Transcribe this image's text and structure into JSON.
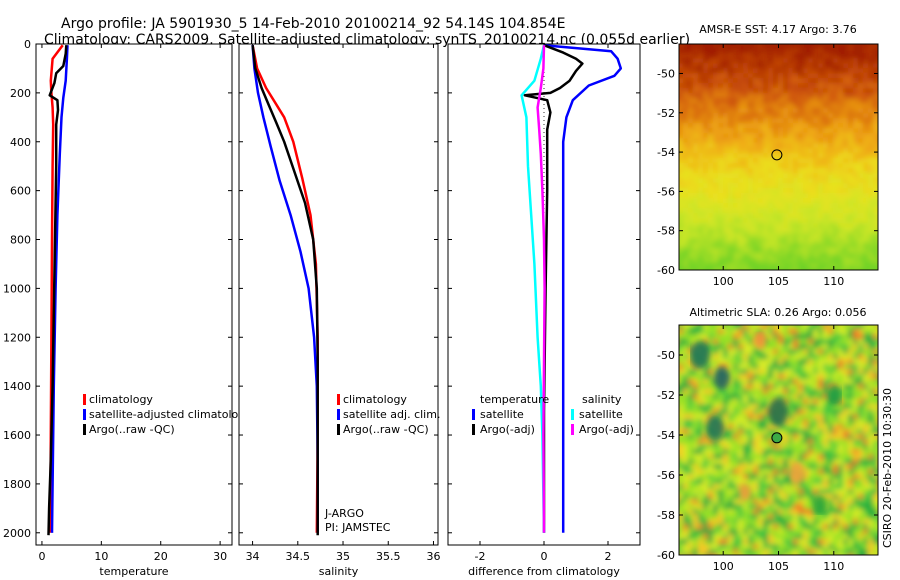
{
  "header": {
    "line1": "Argo profile: JA 5901930_5 14-Feb-2010 20100214_92 54.14S 104.854E",
    "line2": "Climatology: CARS2009. Satellite-adjusted climatology: synTS_20100214.nc (0.055d earlier)"
  },
  "side_label": "CSIRO 20-Feb-2010 10:30:30",
  "colors": {
    "climatology": "#ff0000",
    "satellite": "#0000ff",
    "argo": "#000000",
    "argo_adj": "#ff00ff",
    "satellite_adj": "#00ffff"
  },
  "chart_data": [
    {
      "id": "temperature",
      "type": "line",
      "xlabel": "temperature",
      "xlim": [
        -1,
        32
      ],
      "ylim": [
        2050,
        0
      ],
      "xticks": [
        0,
        10,
        20,
        30
      ],
      "xtick_labels": [
        "0",
        "10",
        "20",
        "30"
      ],
      "yticks": [
        0,
        200,
        400,
        600,
        800,
        1000,
        1200,
        1400,
        1600,
        1800,
        2000
      ],
      "ytick_labels": [
        "0",
        "200",
        "400",
        "600",
        "800",
        "1000",
        "1200",
        "1400",
        "1600",
        "1800",
        "2000"
      ],
      "legend": [
        "climatology",
        "satellite-adjusted climatology",
        "Argo(..raw -QC)"
      ],
      "series": [
        {
          "name": "climatology",
          "color": "#ff0000",
          "points": [
            [
              3.5,
              5
            ],
            [
              1.8,
              60
            ],
            [
              1.5,
              150
            ],
            [
              1.6,
              200
            ],
            [
              1.8,
              260
            ],
            [
              1.9,
              330
            ],
            [
              1.8,
              500
            ],
            [
              1.7,
              800
            ],
            [
              1.6,
              1200
            ],
            [
              1.5,
              1600
            ],
            [
              1.4,
              2000
            ]
          ]
        },
        {
          "name": "satellite-adjusted climatology",
          "color": "#0000ff",
          "points": [
            [
              4.3,
              5
            ],
            [
              4.2,
              60
            ],
            [
              4.0,
              150
            ],
            [
              3.6,
              220
            ],
            [
              3.3,
              300
            ],
            [
              3.0,
              450
            ],
            [
              2.6,
              700
            ],
            [
              2.3,
              1000
            ],
            [
              2.0,
              1400
            ],
            [
              1.8,
              1800
            ],
            [
              1.7,
              2000
            ]
          ]
        },
        {
          "name": "Argo(..raw -QC)",
          "color": "#000000",
          "points": [
            [
              4.1,
              5
            ],
            [
              4.0,
              40
            ],
            [
              3.6,
              90
            ],
            [
              2.4,
              120
            ],
            [
              2.1,
              160
            ],
            [
              1.3,
              210
            ],
            [
              2.6,
              230
            ],
            [
              2.7,
              270
            ],
            [
              2.4,
              330
            ],
            [
              2.4,
              500
            ],
            [
              2.2,
              800
            ],
            [
              2.0,
              1100
            ],
            [
              1.8,
              1400
            ],
            [
              1.5,
              1700
            ],
            [
              1.2,
              1900
            ],
            [
              1.1,
              2010
            ]
          ]
        }
      ]
    },
    {
      "id": "salinity",
      "type": "line",
      "xlabel": "salinity",
      "xlim": [
        33.85,
        36.05
      ],
      "ylim": [
        2050,
        0
      ],
      "xticks": [
        34,
        34.5,
        35,
        35.5,
        36
      ],
      "xtick_labels": [
        "34",
        "34.5",
        "35",
        "35.5",
        "36"
      ],
      "legend": [
        "climatology",
        "satellite adj. clim.",
        "Argo(..raw -QC)"
      ],
      "notes": [
        "J-ARGO",
        "PI: JAMSTEC"
      ],
      "series": [
        {
          "name": "climatology",
          "color": "#ff0000",
          "points": [
            [
              34.0,
              5
            ],
            [
              34.05,
              100
            ],
            [
              34.15,
              180
            ],
            [
              34.25,
              240
            ],
            [
              34.35,
              300
            ],
            [
              34.45,
              400
            ],
            [
              34.55,
              550
            ],
            [
              34.64,
              700
            ],
            [
              34.7,
              900
            ],
            [
              34.72,
              1200
            ],
            [
              34.72,
              1600
            ],
            [
              34.71,
              2000
            ]
          ]
        },
        {
          "name": "satellite adj. clim.",
          "color": "#0000ff",
          "points": [
            [
              34.0,
              5
            ],
            [
              34.02,
              100
            ],
            [
              34.06,
              200
            ],
            [
              34.12,
              300
            ],
            [
              34.2,
              420
            ],
            [
              34.3,
              560
            ],
            [
              34.42,
              700
            ],
            [
              34.53,
              850
            ],
            [
              34.62,
              1000
            ],
            [
              34.68,
              1200
            ],
            [
              34.71,
              1400
            ],
            [
              34.72,
              1700
            ],
            [
              34.72,
              2000
            ]
          ]
        },
        {
          "name": "Argo(..raw -QC)",
          "color": "#000000",
          "points": [
            [
              34.0,
              5
            ],
            [
              34.03,
              100
            ],
            [
              34.1,
              180
            ],
            [
              34.18,
              250
            ],
            [
              34.26,
              320
            ],
            [
              34.35,
              400
            ],
            [
              34.46,
              520
            ],
            [
              34.58,
              650
            ],
            [
              34.67,
              800
            ],
            [
              34.71,
              1000
            ],
            [
              34.72,
              1300
            ],
            [
              34.72,
              1600
            ],
            [
              34.72,
              2010
            ]
          ]
        }
      ]
    },
    {
      "id": "difference",
      "type": "line",
      "xlabel": "difference from climatology",
      "xlim": [
        -3,
        3
      ],
      "ylim": [
        2050,
        0
      ],
      "xticks": [
        -2,
        0,
        2
      ],
      "xtick_labels": [
        "-2",
        "0",
        "2"
      ],
      "legend_groups": [
        {
          "title": "temperature",
          "items": [
            {
              "label": "satellite",
              "color": "#0000ff"
            },
            {
              "label": "Argo(-adj)",
              "color": "#000000"
            }
          ]
        },
        {
          "title": "salinity",
          "items": [
            {
              "label": "satellite",
              "color": "#00ffff"
            },
            {
              "label": "Argo(-adj)",
              "color": "#ff00ff"
            }
          ]
        }
      ],
      "series": [
        {
          "name": "temperature satellite",
          "color": "#0000ff",
          "points": [
            [
              0,
              5
            ],
            [
              2.1,
              30
            ],
            [
              2.3,
              60
            ],
            [
              2.4,
              100
            ],
            [
              2.2,
              130
            ],
            [
              1.4,
              170
            ],
            [
              0.9,
              230
            ],
            [
              0.7,
              300
            ],
            [
              0.6,
              400
            ],
            [
              0.6,
              800
            ],
            [
              0.6,
              1200
            ],
            [
              0.6,
              1600
            ],
            [
              0.6,
              2000
            ]
          ]
        },
        {
          "name": "temperature Argo(-adj)",
          "color": "#000000",
          "points": [
            [
              0,
              5
            ],
            [
              0.6,
              35
            ],
            [
              1.0,
              60
            ],
            [
              1.2,
              80
            ],
            [
              1.0,
              110
            ],
            [
              0.8,
              150
            ],
            [
              0.5,
              180
            ],
            [
              0.2,
              200
            ],
            [
              -0.6,
              210
            ],
            [
              0.1,
              230
            ],
            [
              0.2,
              280
            ],
            [
              0.1,
              350
            ],
            [
              0.1,
              600
            ],
            [
              0.05,
              1000
            ],
            [
              0.0,
              1500
            ],
            [
              0.0,
              2000
            ]
          ]
        },
        {
          "name": "salinity satellite",
          "color": "#00ffff",
          "points": [
            [
              0,
              5
            ],
            [
              -0.1,
              60
            ],
            [
              -0.3,
              150
            ],
            [
              -0.7,
              210
            ],
            [
              -0.55,
              300
            ],
            [
              -0.5,
              500
            ],
            [
              -0.4,
              700
            ],
            [
              -0.3,
              900
            ],
            [
              -0.2,
              1200
            ],
            [
              -0.1,
              1400
            ],
            [
              -0.05,
              1600
            ],
            [
              0,
              2000
            ]
          ]
        },
        {
          "name": "salinity Argo(-adj)",
          "color": "#ff00ff",
          "points": [
            [
              0,
              5
            ],
            [
              -0.02,
              100
            ],
            [
              -0.1,
              180
            ],
            [
              -0.2,
              260
            ],
            [
              -0.15,
              350
            ],
            [
              -0.1,
              450
            ],
            [
              -0.05,
              600
            ],
            [
              0,
              800
            ],
            [
              0.02,
              1000
            ],
            [
              0,
              1300
            ],
            [
              -0.02,
              1600
            ],
            [
              0,
              2000
            ]
          ]
        }
      ]
    },
    {
      "id": "amsr_sst",
      "type": "heatmap",
      "title": "AMSR-E SST: 4.17 Argo: 3.76",
      "xlim": [
        96,
        114
      ],
      "ylim": [
        -60,
        -48.5
      ],
      "xticks": [
        100,
        105,
        110
      ],
      "yticks": [
        -60,
        -58,
        -56,
        -54,
        -52,
        -50
      ],
      "marker": [
        104.854,
        -54.14
      ]
    },
    {
      "id": "altimetric_sla",
      "type": "heatmap",
      "title": "Altimetric SLA: 0.26 Argo: 0.056",
      "xlim": [
        96,
        114
      ],
      "ylim": [
        -60,
        -48.5
      ],
      "xticks": [
        100,
        105,
        110
      ],
      "yticks": [
        -60,
        -58,
        -56,
        -54,
        -52,
        -50
      ],
      "marker": [
        104.854,
        -54.14
      ]
    }
  ]
}
